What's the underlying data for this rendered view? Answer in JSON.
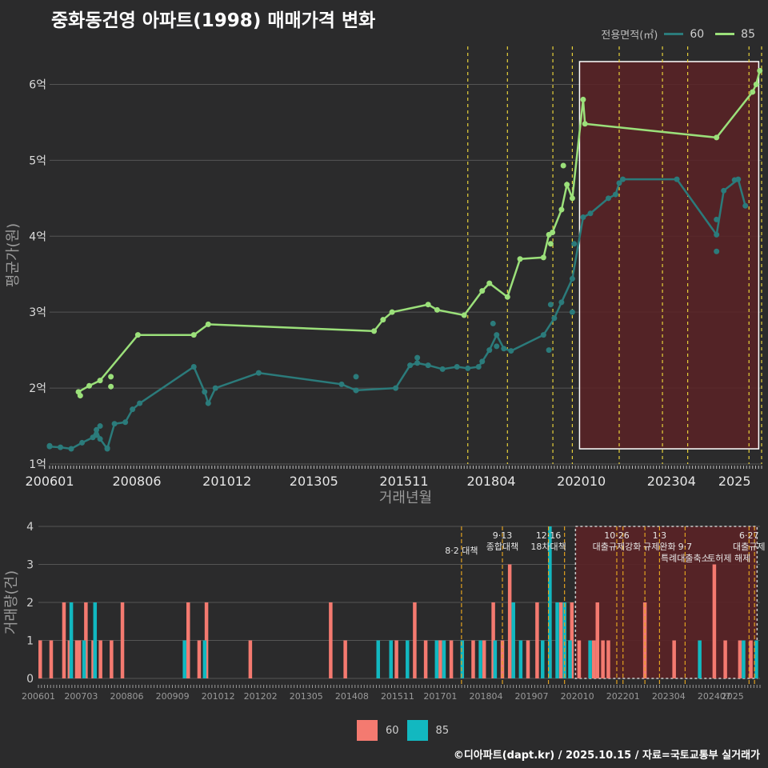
{
  "title": "중화동건영 아파트(1998) 매매가격 변화",
  "credit": "©디아파트(dapt.kr) / 2025.10.15 / 자료=국토교통부 실거래가",
  "colors": {
    "bg": "#2b2b2c",
    "grid": "#555555",
    "line60": "#2b7b7b",
    "line85": "#9be07a",
    "bar60": "#f47a70",
    "bar85": "#12b8c0",
    "vline": "#e6d03a",
    "vline_bottom": "#e0a020",
    "highlight": "#5a2226"
  },
  "legend_top": {
    "title": "전용면적(㎡)",
    "items": [
      {
        "label": "60",
        "color": "#2b7b7b"
      },
      {
        "label": "85",
        "color": "#9be07a"
      }
    ]
  },
  "legend_bottom": {
    "items": [
      {
        "label": "60",
        "color": "#f47a70"
      },
      {
        "label": "85",
        "color": "#12b8c0"
      }
    ]
  },
  "chart_data": [
    {
      "type": "line",
      "title": "중화동건영 아파트(1998) 매매가격 변화",
      "xlabel": "거래년월",
      "ylabel": "평균가(원)",
      "xlim": [
        2006.0,
        2025.75
      ],
      "ylim": [
        1.0,
        6.5
      ],
      "x_ticks": [
        2006.0,
        2008.42,
        2010.92,
        2013.33,
        2015.83,
        2018.25,
        2020.75,
        2023.25,
        2025.0
      ],
      "x_tick_labels": [
        "200601",
        "200806",
        "201012",
        "201305",
        "201511",
        "201804",
        "202010",
        "202304",
        "2025"
      ],
      "y_ticks": [
        1,
        2,
        3,
        4,
        5,
        6
      ],
      "y_tick_labels": [
        "1억",
        "2억",
        "3억",
        "4억",
        "5억",
        "6억"
      ],
      "vlines": [
        2017.6,
        2018.7,
        2019.96,
        2020.5,
        2021.8,
        2023.0,
        2023.7,
        2025.4,
        2025.75
      ],
      "highlight_range": [
        2020.7,
        2025.67
      ],
      "highlight_y": [
        1.2,
        6.3
      ],
      "series": [
        {
          "name": "60",
          "x": [
            2006.0,
            2006.3,
            2006.6,
            2006.9,
            2007.2,
            2007.3,
            2007.4,
            2007.6,
            2007.8,
            2008.1,
            2008.3,
            2008.5,
            2010.0,
            2010.3,
            2010.4,
            2010.6,
            2011.8,
            2014.1,
            2014.5,
            2015.6,
            2016.0,
            2016.2,
            2016.5,
            2016.9,
            2017.3,
            2017.6,
            2017.9,
            2018.0,
            2018.2,
            2018.4,
            2018.6,
            2018.8,
            2019.7,
            2020.0,
            2020.2,
            2020.5,
            2020.8,
            2021.0,
            2021.5,
            2021.7,
            2021.8,
            2021.9,
            2023.4,
            2024.5,
            2024.7,
            2025.1,
            2025.3
          ],
          "y": [
            1.23,
            1.22,
            1.2,
            1.28,
            1.35,
            1.45,
            1.33,
            1.2,
            1.53,
            1.55,
            1.72,
            1.8,
            2.28,
            1.95,
            1.8,
            2.0,
            2.2,
            2.05,
            1.97,
            2.0,
            2.3,
            2.33,
            2.3,
            2.25,
            2.28,
            2.26,
            2.28,
            2.35,
            2.5,
            2.7,
            2.52,
            2.49,
            2.7,
            2.92,
            3.13,
            3.44,
            4.25,
            4.3,
            4.5,
            4.55,
            4.7,
            4.75,
            4.75,
            4.02,
            4.6,
            4.75,
            4.4
          ]
        },
        {
          "name": "85",
          "x": [
            2006.8,
            2007.1,
            2007.4,
            2008.45,
            2010.0,
            2010.4,
            2015.0,
            2015.25,
            2015.5,
            2016.5,
            2016.75,
            2017.5,
            2018.0,
            2018.2,
            2018.7,
            2019.05,
            2019.7,
            2019.85,
            2019.95,
            2020.2,
            2020.35,
            2020.5,
            2020.8,
            2020.85,
            2024.5,
            2025.5,
            2025.6,
            2025.7
          ],
          "y": [
            1.95,
            2.03,
            2.1,
            2.7,
            2.7,
            2.84,
            2.75,
            2.9,
            3.0,
            3.1,
            3.03,
            2.96,
            3.28,
            3.38,
            3.2,
            3.7,
            3.72,
            4.02,
            4.05,
            4.35,
            4.68,
            4.5,
            5.8,
            5.48,
            5.3,
            5.9,
            6.0,
            6.18
          ]
        }
      ],
      "scatter_60": [
        [
          2006.0,
          1.24
        ],
        [
          2007.3,
          1.38
        ],
        [
          2007.4,
          1.5
        ],
        [
          2007.6,
          1.21
        ],
        [
          2014.5,
          2.15
        ],
        [
          2014.5,
          1.97
        ],
        [
          2016.2,
          2.4
        ],
        [
          2018.3,
          2.85
        ],
        [
          2018.4,
          2.55
        ],
        [
          2019.85,
          2.5
        ],
        [
          2019.9,
          3.1
        ],
        [
          2020.5,
          3.0
        ],
        [
          2020.55,
          3.9
        ],
        [
          2024.5,
          4.22
        ],
        [
          2024.5,
          3.8
        ],
        [
          2025.0,
          4.74
        ]
      ],
      "scatter_85": [
        [
          2006.85,
          1.9
        ],
        [
          2007.7,
          2.02
        ],
        [
          2007.7,
          2.15
        ],
        [
          2019.9,
          3.9
        ],
        [
          2020.25,
          4.93
        ]
      ]
    },
    {
      "type": "bar",
      "ylabel": "거래량(건)",
      "xlim": [
        2006.0,
        2025.75
      ],
      "ylim": [
        0,
        4
      ],
      "y_ticks": [
        0,
        1,
        2,
        3,
        4
      ],
      "x_tick_labels": [
        "200601",
        "200703",
        "200806",
        "200909",
        "201012",
        "201202",
        "201305",
        "201408",
        "201511",
        "201701",
        "201804",
        "201907",
        "202010",
        "202201",
        "202304",
        "202407",
        "2025"
      ],
      "x_ticks": [
        2006.0,
        2007.17,
        2008.42,
        2009.67,
        2010.92,
        2012.08,
        2013.33,
        2014.58,
        2015.83,
        2017.0,
        2018.25,
        2019.5,
        2020.75,
        2022.0,
        2023.25,
        2024.5,
        2025.0
      ],
      "highlight_range": [
        2020.7,
        2025.67
      ],
      "series": [
        {
          "name": "60",
          "x": [
            2006.05,
            2006.35,
            2006.7,
            2006.85,
            2007.05,
            2007.12,
            2007.3,
            2007.5,
            2007.7,
            2008.0,
            2008.3,
            2010.1,
            2010.4,
            2010.6,
            2011.8,
            2014.0,
            2014.4,
            2015.8,
            2016.3,
            2016.6,
            2017.0,
            2017.3,
            2017.9,
            2018.2,
            2018.45,
            2018.7,
            2018.9,
            2019.4,
            2019.65,
            2020.0,
            2020.3,
            2020.6,
            2020.8,
            2021.2,
            2021.3,
            2021.45,
            2021.6,
            2022.6,
            2023.4,
            2024.5,
            2024.8,
            2025.2,
            2025.5
          ],
          "values": [
            1,
            1,
            2,
            1,
            1,
            1,
            2,
            1,
            1,
            1,
            2,
            2,
            1,
            2,
            1,
            2,
            1,
            1,
            2,
            1,
            1,
            1,
            1,
            1,
            2,
            1,
            3,
            1,
            2,
            1,
            2,
            2,
            1,
            1,
            2,
            1,
            1,
            2,
            1,
            3,
            1,
            1,
            1
          ]
        },
        {
          "name": "85",
          "x": [
            2006.9,
            2007.25,
            2007.55,
            2010.0,
            2010.55,
            2015.3,
            2015.65,
            2016.1,
            2016.9,
            2017.1,
            2017.6,
            2018.1,
            2018.5,
            2019.0,
            2019.2,
            2019.8,
            2020.0,
            2020.2,
            2020.4,
            2020.55,
            2021.1,
            2024.1,
            2025.3,
            2025.65
          ],
          "values": [
            2,
            1,
            2,
            1,
            1,
            1,
            1,
            1,
            1,
            1,
            1,
            1,
            1,
            2,
            1,
            1,
            4,
            2,
            2,
            1,
            1,
            1,
            1,
            1
          ]
        }
      ],
      "vlines": [
        2017.58,
        2018.7,
        2019.96,
        2020.4,
        2021.83,
        2022.0,
        2022.6,
        2023.0,
        2023.7,
        2025.45,
        2025.6
      ],
      "annotations": [
        {
          "x": 2017.58,
          "y": 3.5,
          "text": "8·2 대책"
        },
        {
          "x": 2018.7,
          "y": 3.9,
          "text": "9·13"
        },
        {
          "x": 2018.7,
          "y": 3.6,
          "text": "종합대책"
        },
        {
          "x": 2019.96,
          "y": 3.9,
          "text": "12·16"
        },
        {
          "x": 2019.96,
          "y": 3.6,
          "text": "18차대책"
        },
        {
          "x": 2021.83,
          "y": 3.9,
          "text": "10·26"
        },
        {
          "x": 2021.83,
          "y": 3.6,
          "text": "대출규제강화"
        },
        {
          "x": 2023.0,
          "y": 3.9,
          "text": "1·3"
        },
        {
          "x": 2023.0,
          "y": 3.6,
          "text": "규제완화"
        },
        {
          "x": 2023.7,
          "y": 3.6,
          "text": "9·7"
        },
        {
          "x": 2023.7,
          "y": 3.3,
          "text": "특례대출축소"
        },
        {
          "x": 2024.9,
          "y": 3.3,
          "text": "토허제 해제"
        },
        {
          "x": 2025.45,
          "y": 3.9,
          "text": "6·27"
        },
        {
          "x": 2025.45,
          "y": 3.6,
          "text": "대출규제"
        }
      ]
    }
  ]
}
